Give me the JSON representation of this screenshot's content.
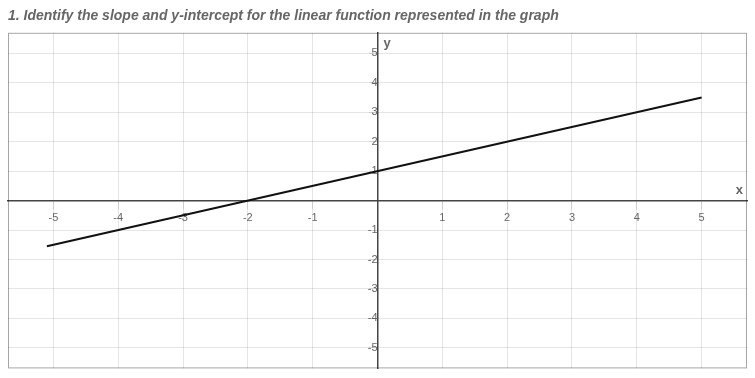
{
  "chart_data": {
    "type": "line",
    "title": "1. Identify the slope and y-intercept for the linear function represented in the graph",
    "xlabel": "x",
    "ylabel": "y",
    "x": [
      -5.1,
      5.0
    ],
    "values": [
      -1.55,
      3.5
    ],
    "color": "#111111",
    "xlim": [
      -5.7,
      5.7
    ],
    "ylim": [
      -5.7,
      5.7
    ],
    "xticks": [
      -5,
      -4,
      -3,
      -2,
      -1,
      1,
      2,
      3,
      4,
      5
    ],
    "yticks": [
      -5,
      -4,
      -3,
      -2,
      -1,
      1,
      2,
      3,
      4,
      5
    ],
    "grid": true
  }
}
